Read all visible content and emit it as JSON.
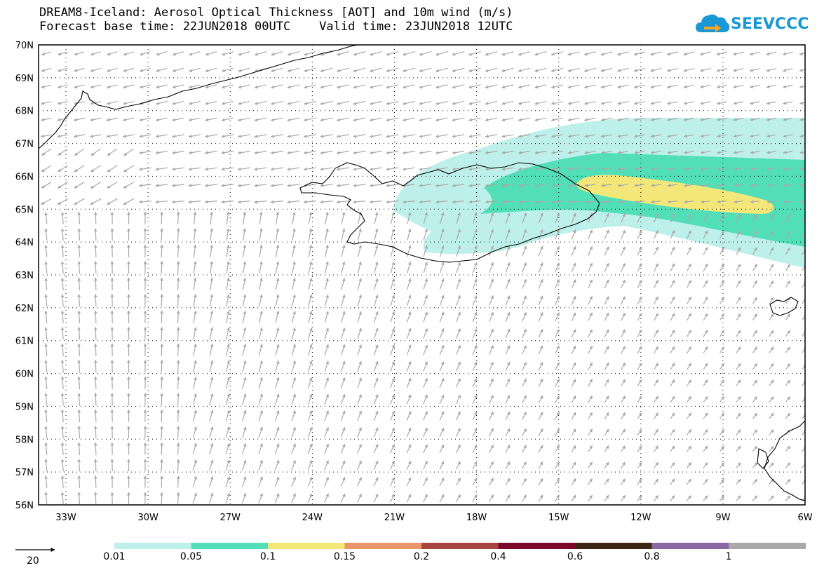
{
  "header": {
    "title_line1": "DREAM8-Iceland: Aerosol Optical Thickness [AOT] and 10m wind (m/s)",
    "title_line2": "Forecast base time: 22JUN2018 00UTC    Valid time: 23JUN2018 12UTC",
    "logo_text": "SEEVCCC",
    "logo_icon": "cloud-icon"
  },
  "map": {
    "lon_range": [
      -34,
      -6
    ],
    "lat_range": [
      56,
      70
    ],
    "lon_ticks": [
      "33W",
      "30W",
      "27W",
      "24W",
      "21W",
      "18W",
      "15W",
      "12W",
      "9W",
      "6W"
    ],
    "lat_ticks": [
      "70N",
      "69N",
      "68N",
      "67N",
      "66N",
      "65N",
      "64N",
      "63N",
      "62N",
      "61N",
      "60N",
      "59N",
      "58N",
      "57N",
      "56N"
    ],
    "grid": "dotted",
    "wind_arrow_color": "#a9a9a9",
    "coast_color": "#000000"
  },
  "legend": {
    "scale_arrow_label": "20",
    "boundaries": [
      "0.01",
      "0.05",
      "0.1",
      "0.15",
      "0.2",
      "0.4",
      "0.6",
      "0.8",
      "1"
    ],
    "colors": [
      "#bdf0ea",
      "#52dfb8",
      "#f4e77a",
      "#e89568",
      "#a7453f",
      "#7b0a2a",
      "#3e2614",
      "#8a69a5",
      "#a9a9a9"
    ]
  }
}
